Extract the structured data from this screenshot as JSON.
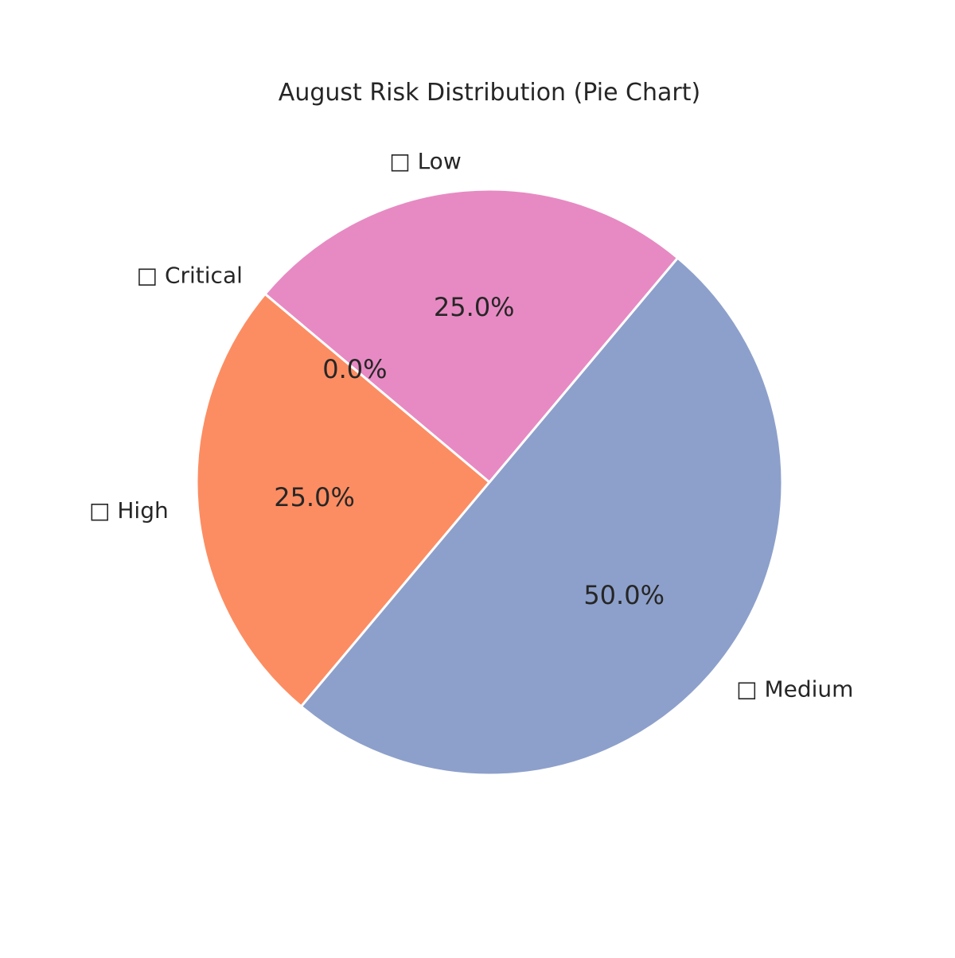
{
  "chart_data": {
    "type": "pie",
    "title": "August Risk Distribution (Pie Chart)",
    "categories": [
      "Critical",
      "High",
      "Medium",
      "Low"
    ],
    "labels": [
      "□ Critical",
      "□ High",
      "□ Medium",
      "□ Low"
    ],
    "values": [
      0,
      25,
      50,
      25
    ],
    "percent_labels": [
      "0.0%",
      "25.0%",
      "50.0%",
      "25.0%"
    ],
    "colors": [
      "#66c2a5",
      "#fc8d62",
      "#8da0cb",
      "#e78ac3"
    ],
    "start_angle_deg": 140,
    "direction": "counterclockwise"
  }
}
